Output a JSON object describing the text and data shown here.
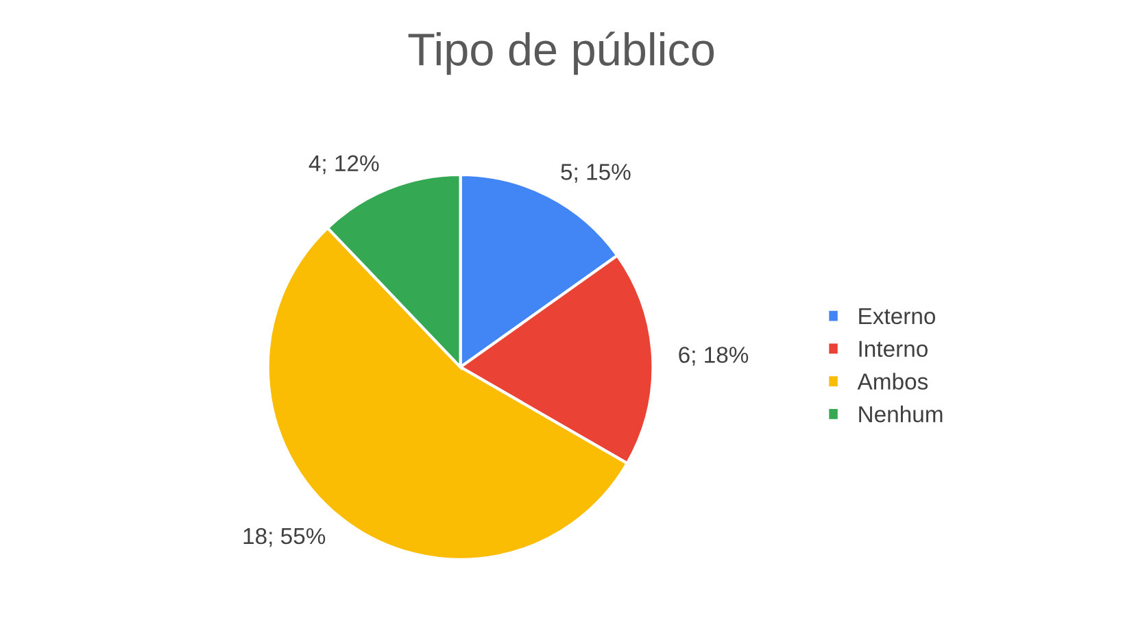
{
  "chart_data": {
    "type": "pie",
    "title": "Tipo de público",
    "categories": [
      "Externo",
      "Interno",
      "Ambos",
      "Nenhum"
    ],
    "values": [
      5,
      6,
      18,
      4
    ],
    "colors": [
      "#4285f4",
      "#ea4335",
      "#fbbc04",
      "#34a853"
    ],
    "value_labels": [
      "5; 15%",
      "6; 18%",
      "18; 55%",
      "4; 12%"
    ],
    "legend": "right"
  }
}
